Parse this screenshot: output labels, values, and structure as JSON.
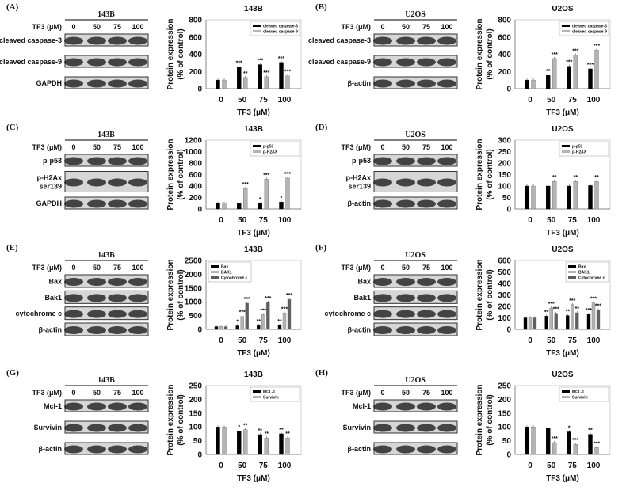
{
  "doses": [
    "0",
    "50",
    "75",
    "100"
  ],
  "dose_label": "TF3 (μM)",
  "ylabel_line1": "Protein expression",
  "ylabel_line2": "(% of control)",
  "series_colors": [
    "#000000",
    "#b4b4b4",
    "#5e5e5e"
  ],
  "panels": [
    {
      "letter": "(A)",
      "cell": "143B",
      "blots": [
        [
          "cleaved caspase-3"
        ],
        [
          "cleaved caspase-9"
        ],
        [
          "GAPDH"
        ]
      ]
    },
    {
      "letter": "(B)",
      "cell": "U2OS",
      "blots": [
        [
          "cleaved caspase-3"
        ],
        [
          "cleaved caspase-9"
        ],
        [
          "β-actin"
        ]
      ]
    },
    {
      "letter": "(C)",
      "cell": "143B",
      "blots": [
        [
          "p-p53"
        ],
        [
          "p-H2Ax",
          "ser139"
        ],
        [
          "GAPDH"
        ]
      ]
    },
    {
      "letter": "(D)",
      "cell": "U2OS",
      "blots": [
        [
          "p-p53"
        ],
        [
          "p-H2Ax",
          "ser139"
        ],
        [
          "β-actin"
        ]
      ]
    },
    {
      "letter": "(E)",
      "cell": "143B",
      "blots": [
        [
          "Bax"
        ],
        [
          "Bak1"
        ],
        [
          "cytochrome c"
        ],
        [
          "β-actin"
        ]
      ]
    },
    {
      "letter": "(F)",
      "cell": "U2OS",
      "blots": [
        [
          "Bax"
        ],
        [
          "Bak1"
        ],
        [
          "cytochrome c"
        ],
        [
          "β-actin"
        ]
      ]
    },
    {
      "letter": "(G)",
      "cell": "143B",
      "blots": [
        [
          "Mcl-1"
        ],
        [
          "Survivin"
        ],
        [
          "β-actin"
        ]
      ]
    },
    {
      "letter": "(H)",
      "cell": "U2OS",
      "blots": [
        [
          "Mcl-1"
        ],
        [
          "Survivin"
        ],
        [
          "β-actin"
        ]
      ]
    }
  ],
  "chart_data": [
    {
      "type": "bar",
      "title": "143B",
      "xlabel": "TF3 (μM)",
      "ylabel": "Protein expression (% of control)",
      "categories": [
        "0",
        "50",
        "75",
        "100"
      ],
      "ylim": [
        0,
        800
      ],
      "ytick_step": 200,
      "legend": "top-right",
      "series": [
        {
          "name": "cleaved caspase-3",
          "values": [
            100,
            255,
            280,
            305
          ],
          "sig": [
            "",
            "***",
            "***",
            "***"
          ]
        },
        {
          "name": "cleaved caspase-9",
          "values": [
            100,
            130,
            140,
            150
          ],
          "sig": [
            "",
            "**",
            "***",
            "***"
          ]
        }
      ]
    },
    {
      "type": "bar",
      "title": "U2OS",
      "xlabel": "TF3 (μM)",
      "ylabel": "Protein expression (% of control)",
      "categories": [
        "0",
        "50",
        "75",
        "100"
      ],
      "ylim": [
        0,
        800
      ],
      "ytick_step": 200,
      "legend": "top-right",
      "series": [
        {
          "name": "cleaved caspase-3",
          "values": [
            100,
            155,
            260,
            230
          ],
          "sig": [
            "",
            "**",
            "***",
            "***"
          ]
        },
        {
          "name": "cleaved caspase-9",
          "values": [
            100,
            350,
            390,
            450
          ],
          "sig": [
            "",
            "***",
            "***",
            "***"
          ]
        }
      ]
    },
    {
      "type": "bar",
      "title": "143B",
      "xlabel": "TF3 (μM)",
      "ylabel": "Protein expression (% of control)",
      "categories": [
        "0",
        "50",
        "75",
        "100"
      ],
      "ylim": [
        0,
        1200
      ],
      "ytick_step": 200,
      "legend": "top-right",
      "series": [
        {
          "name": "p-p53",
          "values": [
            100,
            95,
            95,
            120
          ],
          "sig": [
            "",
            "",
            "*",
            "*"
          ]
        },
        {
          "name": "p-H2AX",
          "values": [
            100,
            360,
            520,
            540
          ],
          "sig": [
            "",
            "***",
            "***",
            "***"
          ]
        }
      ]
    },
    {
      "type": "bar",
      "title": "U2OS",
      "xlabel": "TF3 (μM)",
      "ylabel": "Protein expression (% of control)",
      "categories": [
        "0",
        "50",
        "75",
        "100"
      ],
      "ylim": [
        0,
        300
      ],
      "ytick_step": 50,
      "legend": "top-right",
      "series": [
        {
          "name": "p-p53",
          "values": [
            100,
            100,
            100,
            102
          ],
          "sig": [
            "",
            "",
            "",
            ""
          ]
        },
        {
          "name": "p-H2AX",
          "values": [
            100,
            120,
            120,
            120
          ],
          "sig": [
            "",
            "**",
            "**",
            "**"
          ]
        }
      ]
    },
    {
      "type": "bar",
      "title": "143B",
      "xlabel": "TF3 (μM)",
      "ylabel": "Protein expression (% of control)",
      "categories": [
        "0",
        "50",
        "75",
        "100"
      ],
      "ylim": [
        0,
        2500
      ],
      "ytick_step": 500,
      "legend": "top-left",
      "series": [
        {
          "name": "Bax",
          "values": [
            100,
            130,
            140,
            150
          ],
          "sig": [
            "",
            "*",
            "**",
            "**"
          ]
        },
        {
          "name": "BAK1",
          "values": [
            100,
            470,
            530,
            590
          ],
          "sig": [
            "",
            "***",
            "***",
            "***"
          ]
        },
        {
          "name": "Cytochrome c",
          "values": [
            100,
            950,
            980,
            1090
          ],
          "sig": [
            "",
            "***",
            "***",
            "***"
          ]
        }
      ]
    },
    {
      "type": "bar",
      "title": "U2OS",
      "xlabel": "TF3 (μM)",
      "ylabel": "Protein expression (% of control)",
      "categories": [
        "0",
        "50",
        "75",
        "100"
      ],
      "ylim": [
        0,
        600
      ],
      "ytick_step": 100,
      "legend": "top-right",
      "series": [
        {
          "name": "Bax",
          "values": [
            100,
            115,
            120,
            130
          ],
          "sig": [
            "",
            "**",
            "**",
            "***"
          ]
        },
        {
          "name": "BAK1",
          "values": [
            100,
            185,
            215,
            230
          ],
          "sig": [
            "",
            "***",
            "***",
            "***"
          ]
        },
        {
          "name": "Cytochrome c",
          "values": [
            100,
            140,
            145,
            170
          ],
          "sig": [
            "",
            "***",
            "**",
            "***"
          ]
        }
      ]
    },
    {
      "type": "bar",
      "title": "143B",
      "xlabel": "TF3 (μM)",
      "ylabel": "Protein expression (% of control)",
      "categories": [
        "0",
        "50",
        "75",
        "100"
      ],
      "ylim": [
        0,
        250
      ],
      "ytick_step": 50,
      "legend": "top-right",
      "series": [
        {
          "name": "MCL-1",
          "values": [
            100,
            85,
            72,
            75
          ],
          "sig": [
            "",
            "*",
            "**",
            "**"
          ]
        },
        {
          "name": "Survivin",
          "values": [
            100,
            90,
            60,
            60
          ],
          "sig": [
            "",
            "**",
            "**",
            "**"
          ]
        }
      ]
    },
    {
      "type": "bar",
      "title": "U2OS",
      "xlabel": "TF3 (μM)",
      "ylabel": "Protein expression (% of control)",
      "categories": [
        "0",
        "50",
        "75",
        "100"
      ],
      "ylim": [
        0,
        250
      ],
      "ytick_step": 50,
      "legend": "top-right",
      "series": [
        {
          "name": "MCL-1",
          "values": [
            100,
            97,
            82,
            73
          ],
          "sig": [
            "",
            "",
            "*",
            "**"
          ]
        },
        {
          "name": "Survivin",
          "values": [
            100,
            43,
            37,
            25
          ],
          "sig": [
            "",
            "***",
            "***",
            "***"
          ]
        }
      ]
    }
  ]
}
